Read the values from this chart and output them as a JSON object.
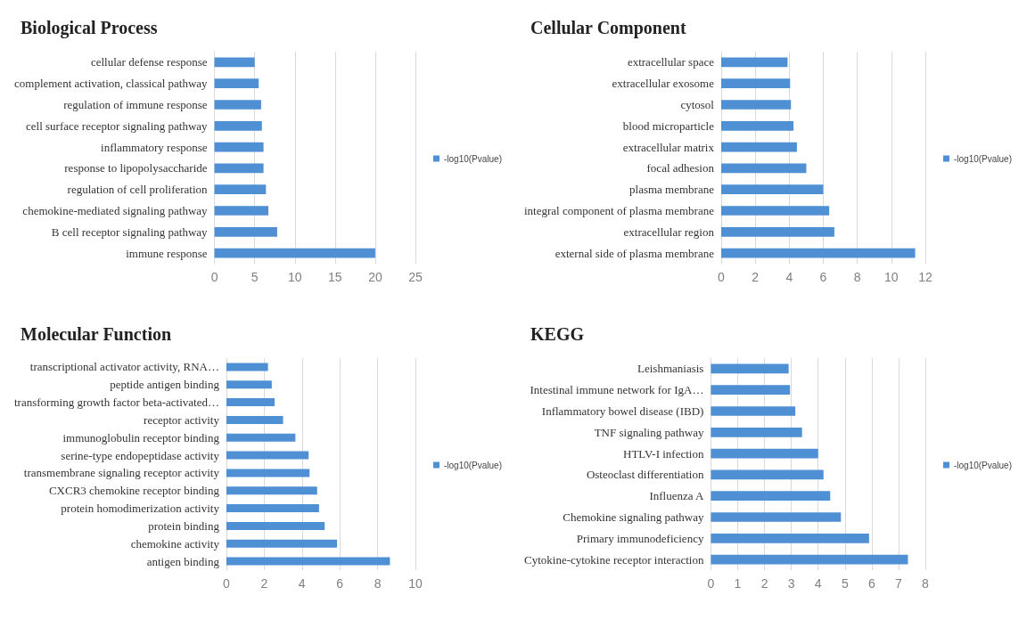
{
  "chart_data": [
    {
      "type": "bar",
      "orientation": "horizontal",
      "title": "Biological Process",
      "categories": [
        "cellular defense response",
        "complement activation, classical pathway",
        "regulation of immune response",
        "cell surface receptor signaling pathway",
        "inflammatory response",
        "response to lipopolysaccharide",
        "regulation of cell proliferation",
        "chemokine-mediated signaling pathway",
        "B cell receptor signaling pathway",
        "immune response"
      ],
      "series": [
        {
          "name": "-log10(Pvalue)",
          "color": "#4f8fd3",
          "values": [
            5.0,
            5.5,
            5.8,
            5.9,
            6.1,
            6.1,
            6.4,
            6.7,
            7.8,
            20.0
          ]
        }
      ],
      "xlim": [
        0,
        25
      ],
      "xticks": [
        0,
        5,
        10,
        15,
        20,
        25
      ],
      "grid": "x",
      "legend": "right"
    },
    {
      "type": "bar",
      "orientation": "horizontal",
      "title": "Cellular Component",
      "categories": [
        "extracellular space",
        "extracellular exosome",
        "cytosol",
        "blood microparticle",
        "extracellular matrix",
        "focal adhesion",
        "plasma membrane",
        "integral component of plasma membrane",
        "extracellular region",
        "external side of plasma membrane"
      ],
      "series": [
        {
          "name": "-log10(Pvalue)",
          "color": "#4f8fd3",
          "values": [
            3.9,
            4.05,
            4.1,
            4.25,
            4.45,
            5.0,
            6.0,
            6.35,
            6.65,
            11.4
          ]
        }
      ],
      "xlim": [
        0,
        12
      ],
      "xticks": [
        0,
        2,
        4,
        6,
        8,
        10,
        12
      ],
      "grid": "x",
      "legend": "right"
    },
    {
      "type": "bar",
      "orientation": "horizontal",
      "title": "Molecular Function",
      "categories": [
        "transcriptional activator activity, RNA…",
        "peptide antigen binding",
        "transforming growth factor beta-activated…",
        "receptor activity",
        "immunoglobulin receptor binding",
        "serine-type endopeptidase activity",
        "transmembrane signaling receptor activity",
        "CXCR3 chemokine receptor binding",
        "protein homodimerization activity",
        "protein binding",
        "chemokine activity",
        "antigen binding"
      ],
      "series": [
        {
          "name": "-log10(Pvalue)",
          "color": "#4f8fd3",
          "values": [
            2.2,
            2.4,
            2.55,
            3.0,
            3.65,
            4.35,
            4.4,
            4.8,
            4.9,
            5.2,
            5.85,
            8.65
          ]
        }
      ],
      "xlim": [
        0,
        10
      ],
      "xticks": [
        0,
        2,
        4,
        6,
        8,
        10
      ],
      "grid": "x",
      "legend": "right"
    },
    {
      "type": "bar",
      "orientation": "horizontal",
      "title": "KEGG",
      "categories": [
        "Leishmaniasis",
        "Intestinal immune network for IgA…",
        "Inflammatory bowel disease (IBD)",
        "TNF signaling pathway",
        "HTLV-I infection",
        "Osteoclast differentiation",
        "Influenza A",
        "Chemokine signaling pathway",
        "Primary immunodeficiency",
        "Cytokine-cytokine receptor interaction"
      ],
      "series": [
        {
          "name": "-log10(Pvalue)",
          "color": "#4f8fd3",
          "values": [
            2.9,
            2.95,
            3.15,
            3.4,
            4.0,
            4.2,
            4.45,
            4.85,
            5.9,
            7.35
          ]
        }
      ],
      "xlim": [
        0,
        8
      ],
      "xticks": [
        0,
        1,
        2,
        3,
        4,
        5,
        6,
        7,
        8
      ],
      "grid": "x",
      "legend": "right"
    }
  ]
}
